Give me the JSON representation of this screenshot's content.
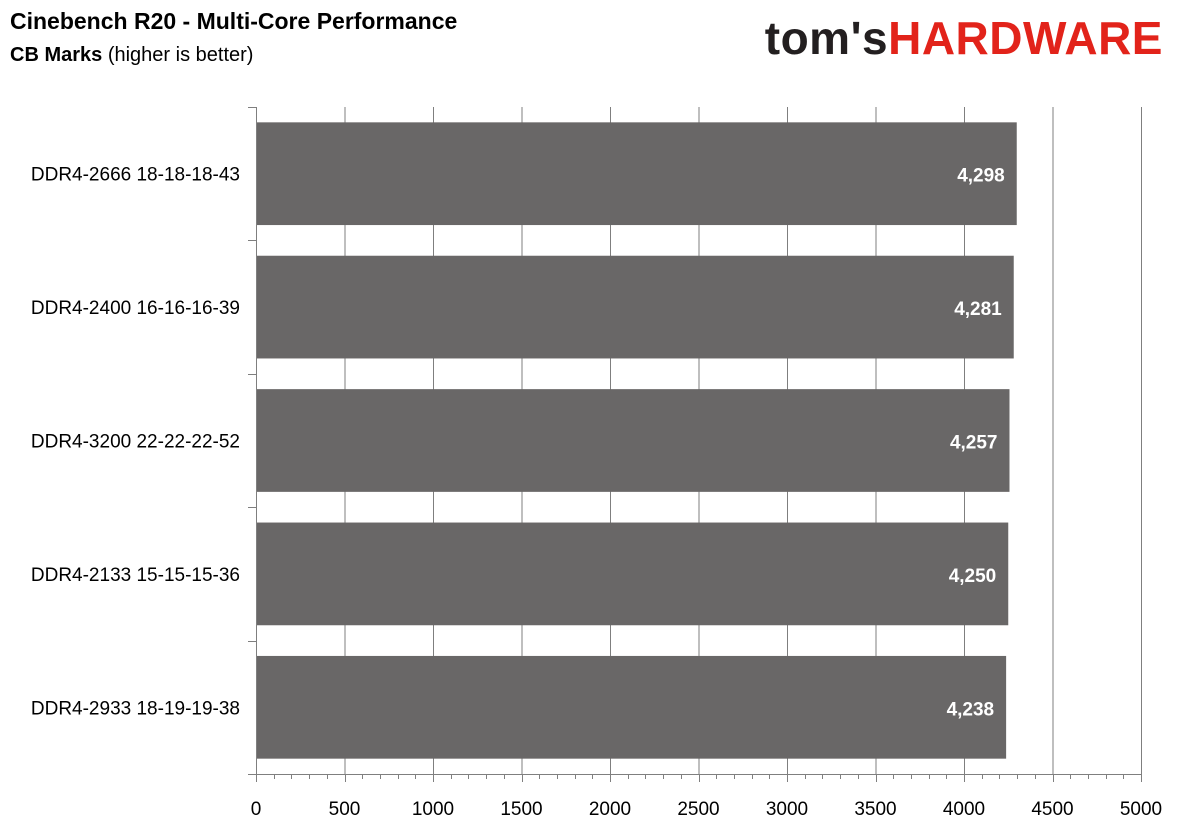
{
  "header": {
    "title": "Cinebench R20 - Multi-Core Performance",
    "subtitle_bold": "CB Marks",
    "subtitle_rest": " (higher is better)",
    "logo_part1": "tom's",
    "logo_part2": "HARDWARE"
  },
  "colors": {
    "bar": "#696767",
    "grid": "#7f7f7f",
    "value_label": "#ffffff",
    "logo_dark": "#231f20",
    "logo_red": "#e2231a"
  },
  "chart_data": {
    "type": "bar",
    "orientation": "horizontal",
    "title": "Cinebench R20 - Multi-Core Performance",
    "subtitle": "CB Marks (higher is better)",
    "categories": [
      "DDR4-2666 18-18-18-43",
      "DDR4-2400 16-16-16-39",
      "DDR4-3200 22-22-22-52",
      "DDR4-2133 15-15-15-36",
      "DDR4-2933 18-19-19-38"
    ],
    "values": [
      4298,
      4281,
      4257,
      4250,
      4238
    ],
    "value_labels": [
      "4,298",
      "4,281",
      "4,257",
      "4,250",
      "4,238"
    ],
    "xlim": [
      0,
      5000
    ],
    "xticks": [
      0,
      500,
      1000,
      1500,
      2000,
      2500,
      3000,
      3500,
      4000,
      4500,
      5000
    ],
    "grid": true,
    "legend": "none"
  }
}
